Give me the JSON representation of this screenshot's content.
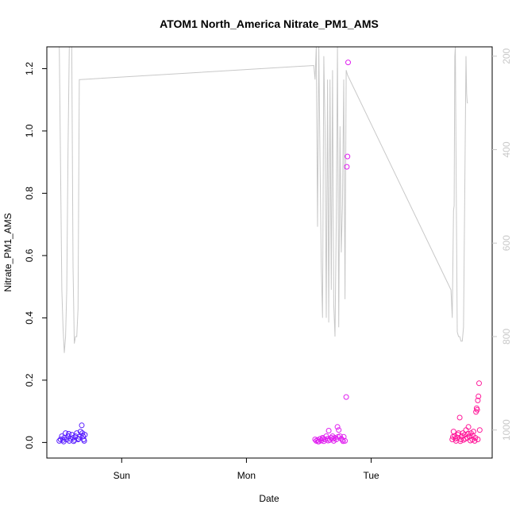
{
  "chart_data": {
    "type": "scatter",
    "title": "ATOM1 North_America Nitrate_PM1_AMS",
    "xlabel": "Date",
    "ylabel": "Nitrate_PM1_AMS",
    "ylim": [
      -0.05,
      1.27
    ],
    "y_ticks": [
      0.0,
      0.2,
      0.4,
      0.6,
      0.8,
      1.0,
      1.2
    ],
    "y_tick_labels": [
      "0.0",
      "0.2",
      "0.4",
      "0.6",
      "0.8",
      "1.0",
      "1.2"
    ],
    "x_ticks": [
      1,
      2,
      3
    ],
    "x_tick_labels": [
      "Sun",
      "Mon",
      "Tue"
    ],
    "xlim": [
      0.4,
      3.97
    ],
    "right_axis": {
      "ylim": [
        1060,
        180
      ],
      "ticks": [
        200,
        400,
        600,
        800,
        1000
      ],
      "tick_labels": [
        "200",
        "400",
        "600",
        "800",
        "1000"
      ],
      "line_color": "#c8c8c8"
    },
    "grid": false,
    "legend": "none",
    "series": [
      {
        "color": "#5a20ff",
        "points": [
          [
            0.5,
            0.005
          ],
          [
            0.51,
            0.01
          ],
          [
            0.52,
            0.02
          ],
          [
            0.53,
            0.008
          ],
          [
            0.54,
            0.015
          ],
          [
            0.55,
            0.03
          ],
          [
            0.56,
            0.01
          ],
          [
            0.57,
            0.02
          ],
          [
            0.58,
            0.005
          ],
          [
            0.59,
            0.012
          ],
          [
            0.6,
            0.025
          ],
          [
            0.61,
            0.015
          ],
          [
            0.62,
            0.008
          ],
          [
            0.63,
            0.02
          ],
          [
            0.64,
            0.03
          ],
          [
            0.65,
            0.01
          ],
          [
            0.66,
            0.018
          ],
          [
            0.67,
            0.035
          ],
          [
            0.68,
            0.055
          ],
          [
            0.69,
            0.02
          ],
          [
            0.7,
            0.005
          ],
          [
            0.705,
            0.025
          ],
          [
            0.535,
            0.003
          ],
          [
            0.575,
            0.028
          ],
          [
            0.615,
            0.004
          ],
          [
            0.655,
            0.012
          ],
          [
            0.685,
            0.03
          ],
          [
            0.695,
            0.01
          ]
        ]
      },
      {
        "color": "#e020f0",
        "points": [
          [
            2.55,
            0.01
          ],
          [
            2.56,
            0.005
          ],
          [
            2.57,
            0.008
          ],
          [
            2.58,
            0.003
          ],
          [
            2.59,
            0.012
          ],
          [
            2.6,
            0.006
          ],
          [
            2.61,
            0.015
          ],
          [
            2.62,
            0.004
          ],
          [
            2.63,
            0.01
          ],
          [
            2.64,
            0.02
          ],
          [
            2.65,
            0.012
          ],
          [
            2.66,
            0.038
          ],
          [
            2.67,
            0.008
          ],
          [
            2.68,
            0.015
          ],
          [
            2.69,
            0.02
          ],
          [
            2.7,
            0.005
          ],
          [
            2.71,
            0.015
          ],
          [
            2.72,
            0.01
          ],
          [
            2.73,
            0.05
          ],
          [
            2.74,
            0.04
          ],
          [
            2.75,
            0.02
          ],
          [
            2.76,
            0.012
          ],
          [
            2.77,
            0.008
          ],
          [
            2.78,
            0.018
          ],
          [
            2.79,
            0.005
          ],
          [
            2.8,
            0.146
          ],
          [
            2.805,
            0.885
          ],
          [
            2.81,
            0.918
          ],
          [
            2.815,
            1.22
          ],
          [
            2.575,
            0.003
          ],
          [
            2.615,
            0.012
          ],
          [
            2.655,
            0.006
          ],
          [
            2.695,
            0.012
          ],
          [
            2.735,
            0.018
          ],
          [
            2.775,
            0.004
          ]
        ]
      },
      {
        "color": "#ff1a9a",
        "points": [
          [
            3.65,
            0.01
          ],
          [
            3.66,
            0.035
          ],
          [
            3.67,
            0.02
          ],
          [
            3.68,
            0.005
          ],
          [
            3.69,
            0.015
          ],
          [
            3.7,
            0.03
          ],
          [
            3.71,
            0.08
          ],
          [
            3.72,
            0.01
          ],
          [
            3.73,
            0.02
          ],
          [
            3.74,
            0.008
          ],
          [
            3.75,
            0.025
          ],
          [
            3.76,
            0.04
          ],
          [
            3.77,
            0.015
          ],
          [
            3.78,
            0.05
          ],
          [
            3.79,
            0.02
          ],
          [
            3.8,
            0.03
          ],
          [
            3.81,
            0.01
          ],
          [
            3.82,
            0.035
          ],
          [
            3.83,
            0.005
          ],
          [
            3.84,
            0.098
          ],
          [
            3.845,
            0.11
          ],
          [
            3.85,
            0.105
          ],
          [
            3.855,
            0.135
          ],
          [
            3.86,
            0.148
          ],
          [
            3.865,
            0.19
          ],
          [
            3.87,
            0.04
          ],
          [
            3.655,
            0.018
          ],
          [
            3.675,
            0.012
          ],
          [
            3.695,
            0.025
          ],
          [
            3.715,
            0.004
          ],
          [
            3.735,
            0.03
          ],
          [
            3.755,
            0.012
          ],
          [
            3.775,
            0.028
          ],
          [
            3.795,
            0.006
          ],
          [
            3.815,
            0.022
          ],
          [
            3.835,
            0.015
          ],
          [
            3.855,
            0.01
          ]
        ]
      }
    ],
    "pressure_line": {
      "color": "#c8c8c8",
      "points": [
        [
          0.5,
          160
        ],
        [
          0.52,
          700
        ],
        [
          0.53,
          780
        ],
        [
          0.54,
          835
        ],
        [
          0.55,
          800
        ],
        [
          0.56,
          700
        ],
        [
          0.57,
          400
        ],
        [
          0.58,
          160
        ],
        [
          0.6,
          180
        ],
        [
          0.61,
          650
        ],
        [
          0.62,
          815
        ],
        [
          0.63,
          800
        ],
        [
          0.64,
          800
        ],
        [
          0.65,
          740
        ],
        [
          0.66,
          250
        ],
        [
          0.67,
          250
        ],
        [
          2.54,
          220
        ],
        [
          2.55,
          250
        ],
        [
          2.56,
          170
        ],
        [
          2.57,
          565
        ],
        [
          2.58,
          150
        ],
        [
          2.59,
          420
        ],
        [
          2.6,
          650
        ],
        [
          2.61,
          760
        ],
        [
          2.62,
          200
        ],
        [
          2.63,
          350
        ],
        [
          2.64,
          760
        ],
        [
          2.65,
          250
        ],
        [
          2.66,
          770
        ],
        [
          2.67,
          250
        ],
        [
          2.68,
          700
        ],
        [
          2.69,
          230
        ],
        [
          2.7,
          730
        ],
        [
          2.71,
          800
        ],
        [
          2.72,
          550
        ],
        [
          2.73,
          180
        ],
        [
          2.74,
          780
        ],
        [
          2.75,
          350
        ],
        [
          2.76,
          620
        ],
        [
          2.77,
          520
        ],
        [
          2.78,
          250
        ],
        [
          2.79,
          720
        ],
        [
          2.8,
          230
        ],
        [
          2.81,
          240
        ],
        [
          3.64,
          700
        ],
        [
          3.65,
          760
        ],
        [
          3.66,
          530
        ],
        [
          3.665,
          520
        ],
        [
          3.67,
          200
        ],
        [
          3.675,
          150
        ],
        [
          3.68,
          400
        ],
        [
          3.685,
          600
        ],
        [
          3.69,
          790
        ],
        [
          3.7,
          800
        ],
        [
          3.71,
          800
        ],
        [
          3.72,
          810
        ],
        [
          3.73,
          810
        ],
        [
          3.74,
          780
        ],
        [
          3.75,
          500
        ],
        [
          3.76,
          200
        ],
        [
          3.765,
          280
        ],
        [
          3.77,
          300
        ],
        [
          3.775,
          300
        ]
      ]
    }
  }
}
